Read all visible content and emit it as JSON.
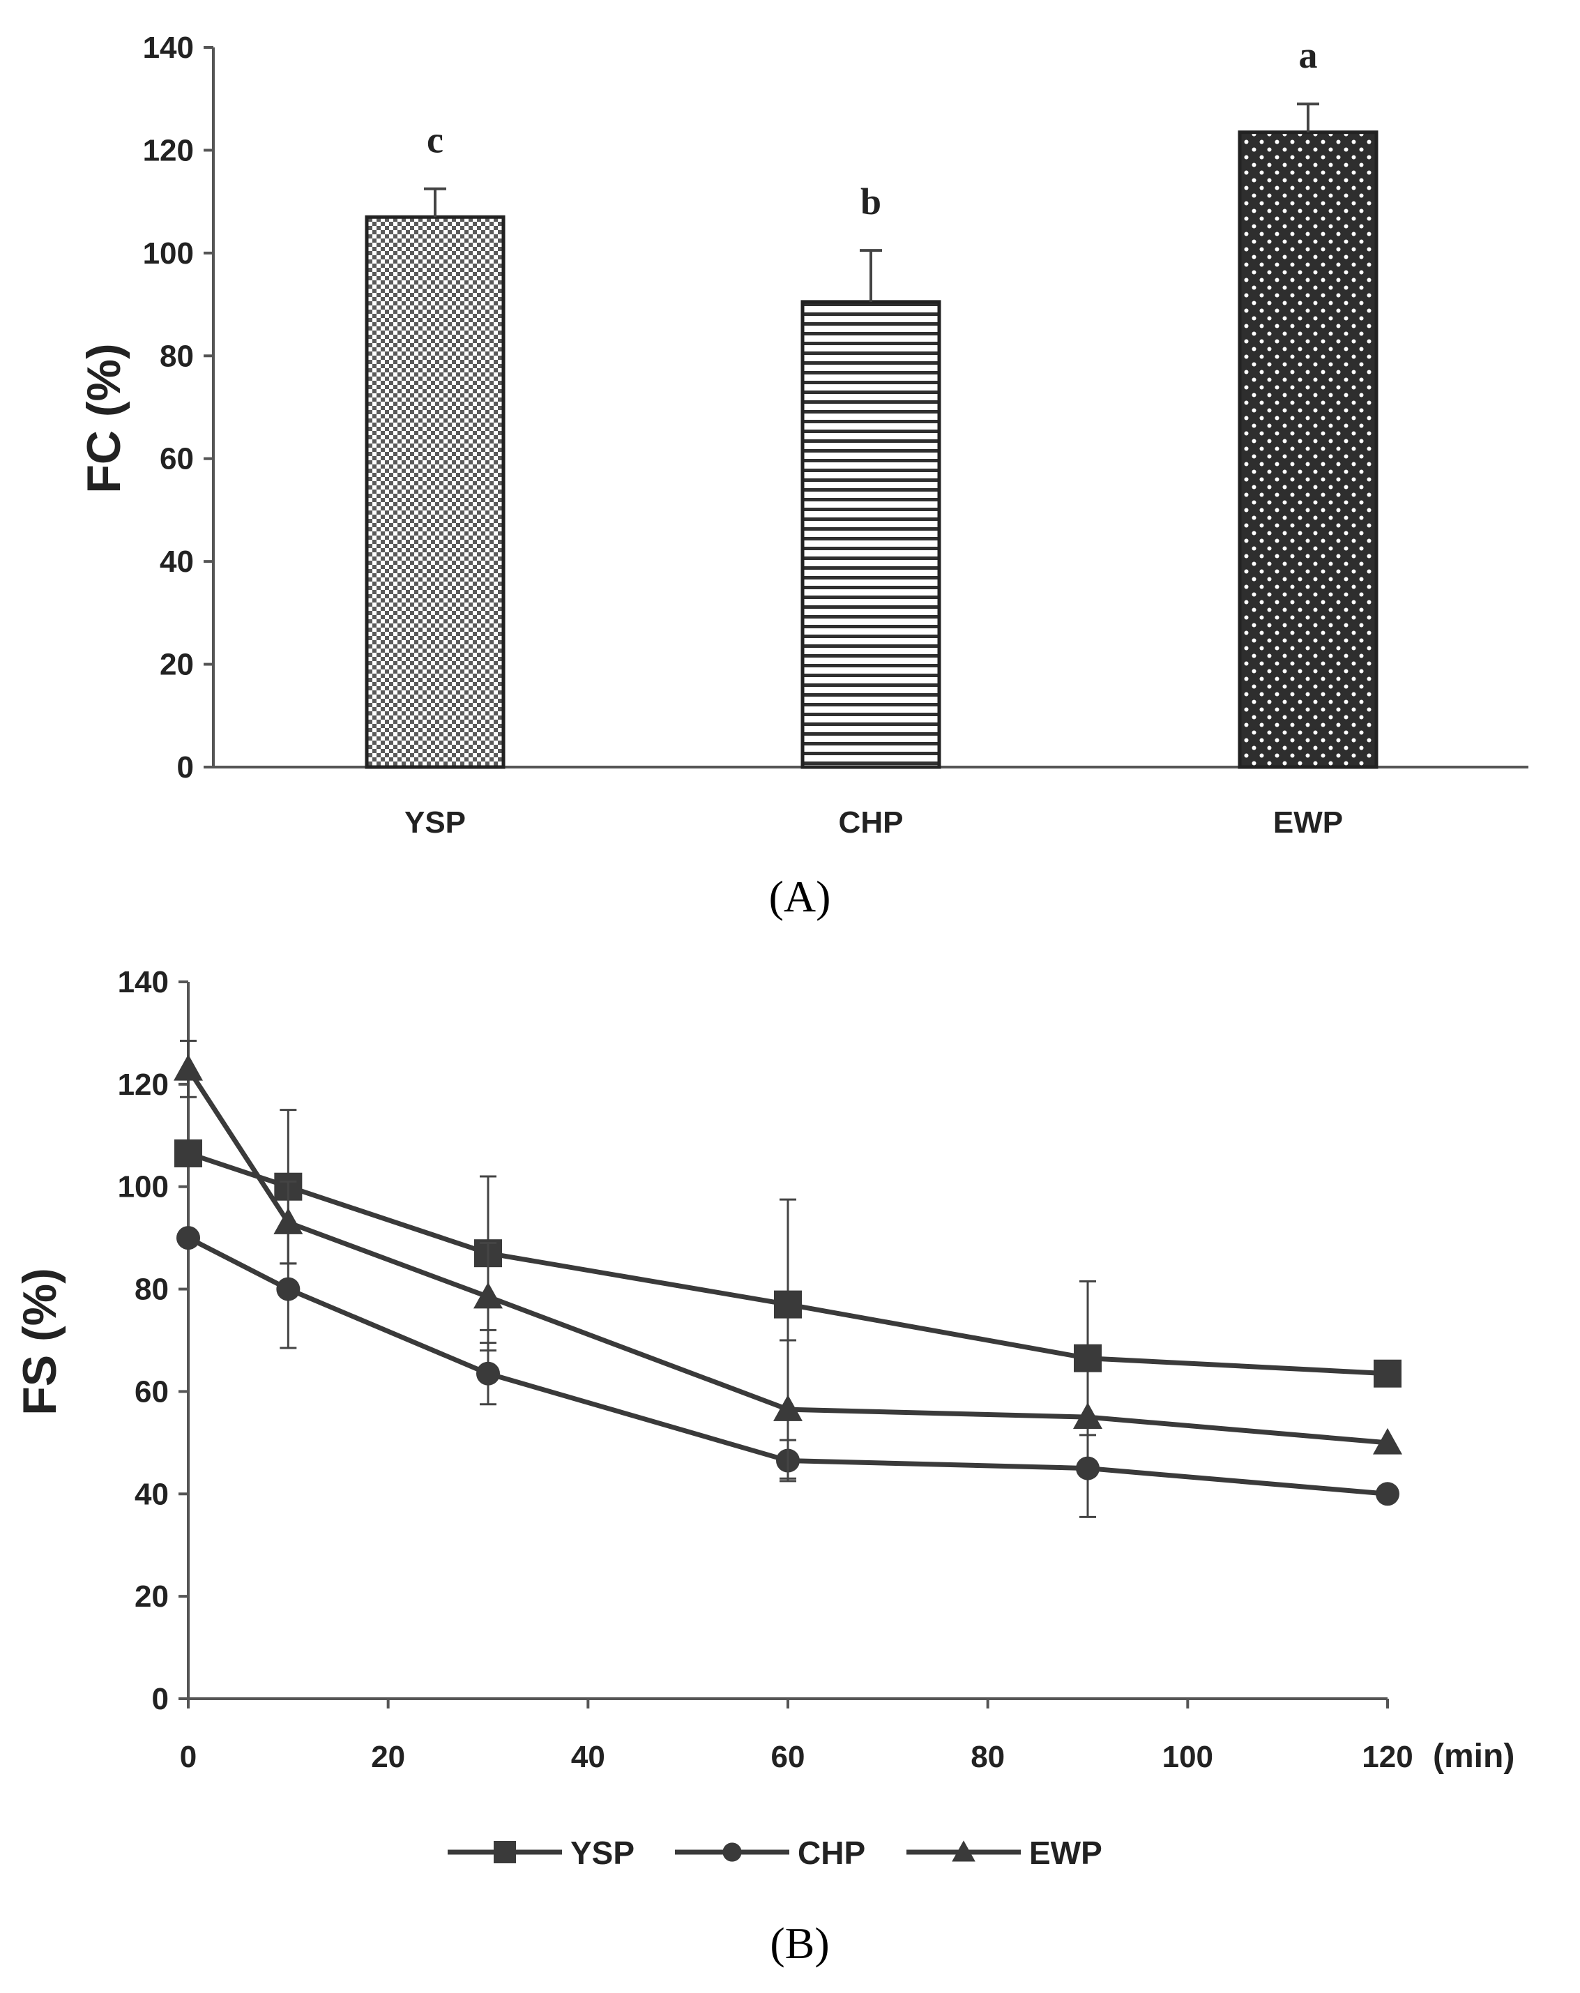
{
  "chart_data": [
    {
      "type": "bar",
      "panel": "A",
      "categories": [
        "YSP",
        "CHP",
        "EWP"
      ],
      "values": [
        107,
        90.5,
        123.5
      ],
      "errors": [
        5.5,
        10,
        5.5
      ],
      "significance": [
        "c",
        "b",
        "a"
      ],
      "ylabel": "FC (%)",
      "xlabel": "",
      "ylim": [
        0,
        140
      ],
      "yticks": [
        "0",
        "20",
        "40",
        "60",
        "80",
        "100",
        "120",
        "140"
      ],
      "yticks_values": [
        0,
        20,
        40,
        60,
        80,
        100,
        120,
        140
      ],
      "panel_label_text": "(A)"
    },
    {
      "type": "line",
      "panel": "B",
      "x": [
        0,
        10,
        30,
        60,
        90,
        120
      ],
      "xticks": [
        "0",
        "20",
        "40",
        "60",
        "80",
        "100",
        "120"
      ],
      "xticks_values": [
        0,
        20,
        40,
        60,
        80,
        100,
        120
      ],
      "xunit": "(min)",
      "ylabel": "FS (%)",
      "ylim": [
        0,
        140
      ],
      "xlim": [
        0,
        120
      ],
      "yticks": [
        "0",
        "20",
        "40",
        "60",
        "80",
        "100",
        "120",
        "140"
      ],
      "yticks_values": [
        0,
        20,
        40,
        60,
        80,
        100,
        120,
        140
      ],
      "legend_position": "bottom",
      "series": [
        {
          "name": "YSP",
          "marker": "square",
          "values": [
            106.5,
            100,
            87,
            77,
            66.5,
            63.5
          ],
          "errors": [
            0,
            15,
            15,
            20.5,
            15,
            0
          ]
        },
        {
          "name": "CHP",
          "marker": "circle",
          "values": [
            90,
            80,
            63.5,
            46.5,
            45,
            40
          ],
          "errors": [
            0,
            11.5,
            6,
            4,
            9.5,
            0
          ]
        },
        {
          "name": "EWP",
          "marker": "triangle",
          "values": [
            123,
            93,
            78.5,
            56.5,
            55,
            50
          ],
          "errors": [
            5.5,
            8,
            10.5,
            13.5,
            0,
            0
          ]
        }
      ],
      "panel_label_text": "(B)"
    }
  ],
  "colors": {
    "line": "#3a3a3a",
    "axis": "#555555",
    "bar_edge": "#222222"
  }
}
